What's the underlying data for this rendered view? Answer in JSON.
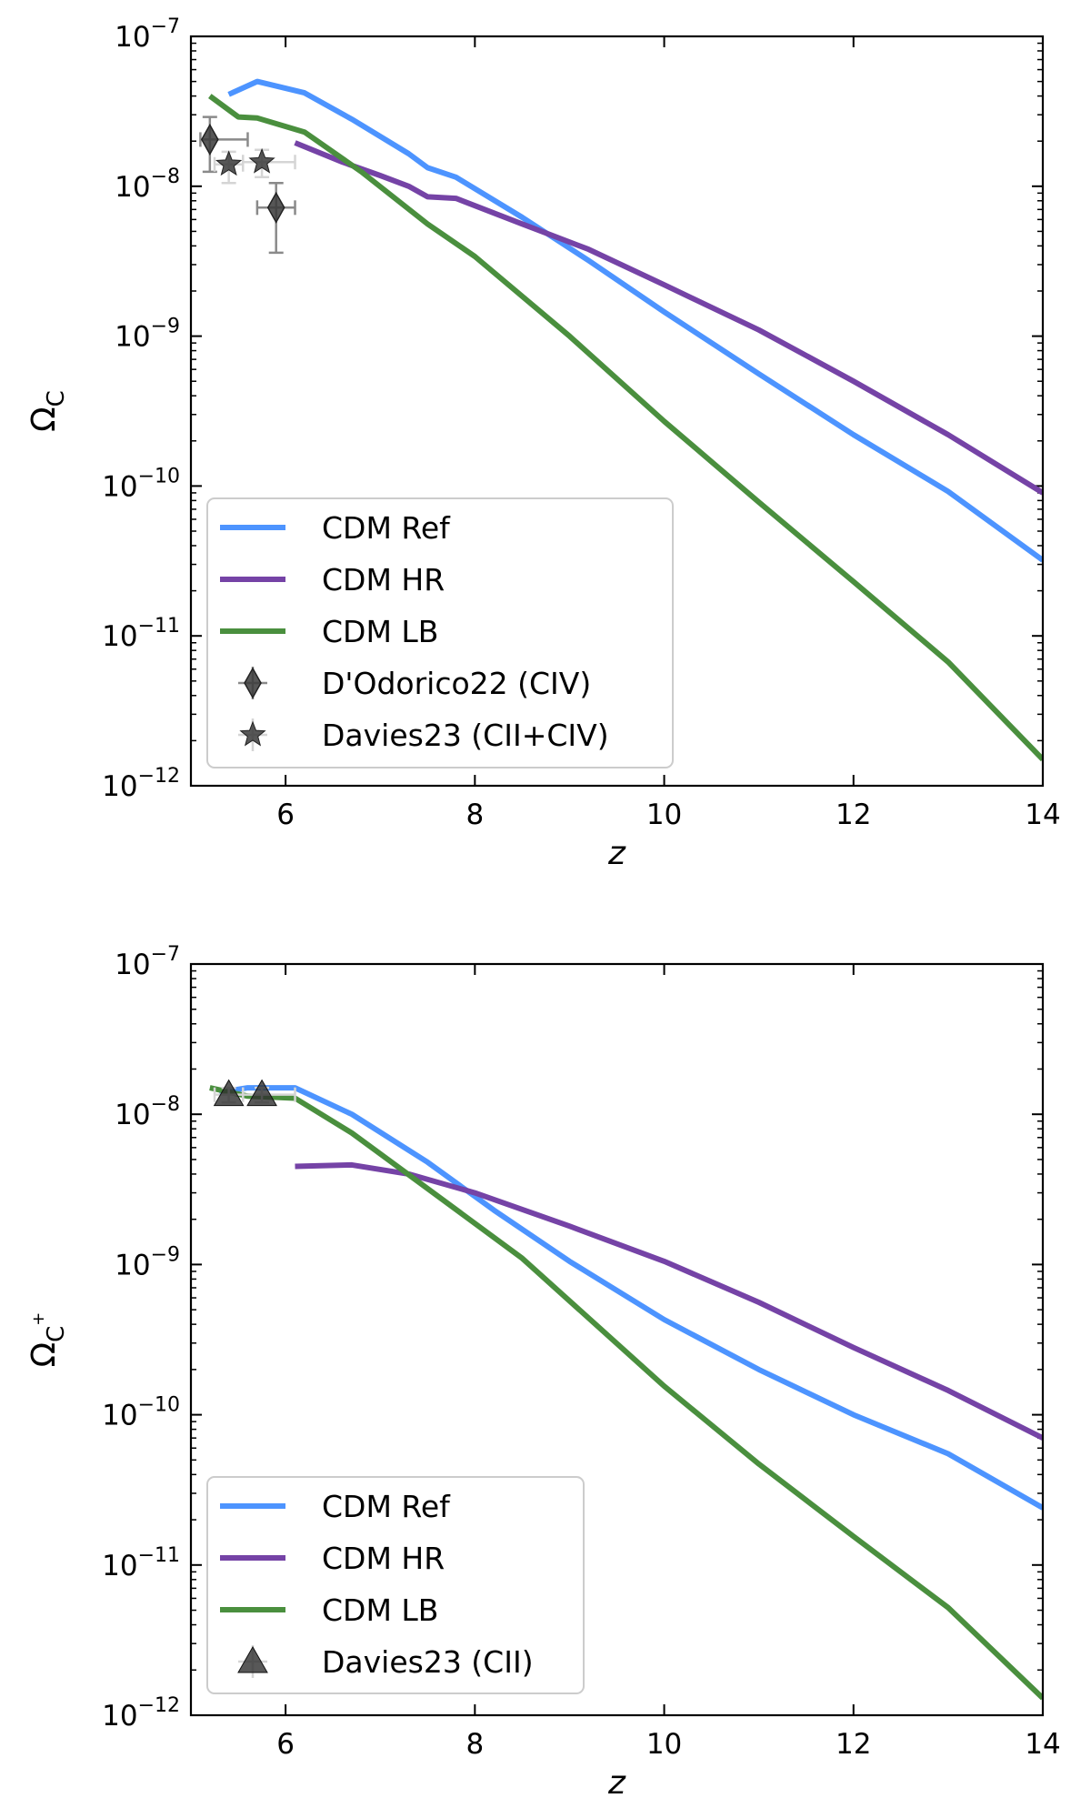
{
  "chart_data": [
    {
      "type": "line",
      "name": "top",
      "ylabel_main": "Ω",
      "ylabel_sub": "C",
      "ylabel_sup": "",
      "xlabel": "z",
      "xlim": [
        5,
        14
      ],
      "ylim_log10": [
        -12,
        -7
      ],
      "xticks": [
        6,
        8,
        10,
        12,
        14
      ],
      "yticks": [
        {
          "base": "10",
          "exp": "−7",
          "log": -7
        },
        {
          "base": "10",
          "exp": "−8",
          "log": -8
        },
        {
          "base": "10",
          "exp": "−9",
          "log": -9
        },
        {
          "base": "10",
          "exp": "−10",
          "log": -10
        },
        {
          "base": "10",
          "exp": "−11",
          "log": -11
        },
        {
          "base": "10",
          "exp": "−12",
          "log": -12
        }
      ],
      "series": [
        {
          "name": "CDM Ref",
          "color": "#4d94ff",
          "x": [
            5.4,
            5.7,
            6.2,
            6.7,
            7.3,
            7.5,
            7.8,
            8.5,
            9.2,
            10,
            11,
            12,
            13,
            14
          ],
          "y": [
            4.1e-08,
            5e-08,
            4.2e-08,
            2.8e-08,
            1.65e-08,
            1.33e-08,
            1.15e-08,
            6.2e-09,
            3.2e-09,
            1.45e-09,
            5.6e-10,
            2.2e-10,
            9.2e-11,
            3.2e-11
          ]
        },
        {
          "name": "CDM HR",
          "color": "#7543a6",
          "x": [
            6.1,
            6.6,
            7.0,
            7.3,
            7.5,
            7.8,
            8.5,
            9.2,
            10,
            11,
            12,
            13,
            14
          ],
          "y": [
            1.95e-08,
            1.45e-08,
            1.18e-08,
            1e-08,
            8.5e-09,
            8.3e-09,
            5.6e-09,
            3.8e-09,
            2.2e-09,
            1.1e-09,
            5e-10,
            2.2e-10,
            9e-11
          ]
        },
        {
          "name": "CDM LB",
          "color": "#4a8f3e",
          "x": [
            5.2,
            5.5,
            5.7,
            6.2,
            6.8,
            7.5,
            8.0,
            9.0,
            10,
            11,
            12,
            13,
            14
          ],
          "y": [
            4e-08,
            2.9e-08,
            2.85e-08,
            2.3e-08,
            1.25e-08,
            5.6e-09,
            3.4e-09,
            1e-09,
            2.7e-10,
            7.8e-11,
            2.3e-11,
            6.7e-12,
            1.5e-12
          ]
        }
      ],
      "observations": [
        {
          "name": "D'Odorico22 (CIV)",
          "marker": "diamond",
          "points": [
            {
              "x": 5.2,
              "y": 2.05e-08,
              "xerr": [
                0.1,
                0.4
              ],
              "yerr": [
                1.25e-08,
                2.9e-08
              ]
            },
            {
              "x": 5.9,
              "y": 7.2e-09,
              "xerr": [
                0.2,
                0.2
              ],
              "yerr": [
                3.6e-09,
                1.05e-08
              ]
            }
          ]
        },
        {
          "name": "Davies23 (CII+CIV)",
          "marker": "star",
          "points": [
            {
              "x": 5.4,
              "y": 1.4e-08,
              "xerr": [
                0.15,
                0.15
              ],
              "yerr": [
                1.05e-08,
                1.7e-08
              ]
            },
            {
              "x": 5.75,
              "y": 1.45e-08,
              "xerr": [
                0.2,
                0.35
              ],
              "yerr": [
                1.15e-08,
                1.75e-08
              ]
            }
          ]
        }
      ],
      "legend": [
        "CDM Ref",
        "CDM HR",
        "CDM LB",
        "D'Odorico22 (CIV)",
        "Davies23 (CII+CIV)"
      ],
      "legend_position": "lower-left"
    },
    {
      "type": "line",
      "name": "bottom",
      "ylabel_main": "Ω",
      "ylabel_sub": "C",
      "ylabel_sup": "+",
      "xlabel": "z",
      "xlim": [
        5,
        14
      ],
      "ylim_log10": [
        -12,
        -7
      ],
      "xticks": [
        6,
        8,
        10,
        12,
        14
      ],
      "yticks": [
        {
          "base": "10",
          "exp": "−7",
          "log": -7
        },
        {
          "base": "10",
          "exp": "−8",
          "log": -8
        },
        {
          "base": "10",
          "exp": "−9",
          "log": -9
        },
        {
          "base": "10",
          "exp": "−10",
          "log": -10
        },
        {
          "base": "10",
          "exp": "−11",
          "log": -11
        },
        {
          "base": "10",
          "exp": "−12",
          "log": -12
        }
      ],
      "series": [
        {
          "name": "CDM Ref",
          "color": "#4d94ff",
          "x": [
            5.3,
            5.6,
            6.1,
            6.7,
            7.5,
            8.2,
            9.0,
            10,
            11,
            12,
            13,
            14
          ],
          "y": [
            1.4e-08,
            1.5e-08,
            1.5e-08,
            1e-08,
            4.8e-09,
            2.3e-09,
            1.05e-09,
            4.3e-10,
            2e-10,
            1e-10,
            5.5e-11,
            2.4e-11
          ]
        },
        {
          "name": "CDM HR",
          "color": "#7543a6",
          "x": [
            6.1,
            6.7,
            7.3,
            8.0,
            9.0,
            10,
            11,
            12,
            13,
            14
          ],
          "y": [
            4.5e-09,
            4.6e-09,
            4e-09,
            3e-09,
            1.8e-09,
            1.05e-09,
            5.6e-10,
            2.8e-10,
            1.45e-10,
            7e-11
          ]
        },
        {
          "name": "CDM LB",
          "color": "#4a8f3e",
          "x": [
            5.2,
            5.6,
            6.1,
            6.7,
            7.5,
            8.5,
            10,
            11,
            12,
            13,
            14
          ],
          "y": [
            1.5e-08,
            1.32e-08,
            1.28e-08,
            7.5e-09,
            3.2e-09,
            1.1e-09,
            1.55e-10,
            4.7e-11,
            1.55e-11,
            5.2e-12,
            1.3e-12
          ]
        }
      ],
      "observations": [
        {
          "name": "Davies23 (CII)",
          "marker": "triangle",
          "points": [
            {
              "x": 5.4,
              "y": 1.35e-08,
              "xerr": [
                0.15,
                0.15
              ],
              "yerr": [
                1.2e-08,
                1.5e-08
              ]
            },
            {
              "x": 5.75,
              "y": 1.35e-08,
              "xerr": [
                0.2,
                0.35
              ],
              "yerr": [
                1.2e-08,
                1.5e-08
              ]
            }
          ]
        }
      ],
      "legend": [
        "CDM Ref",
        "CDM HR",
        "CDM LB",
        "Davies23 (CII)"
      ],
      "legend_position": "lower-left"
    }
  ]
}
